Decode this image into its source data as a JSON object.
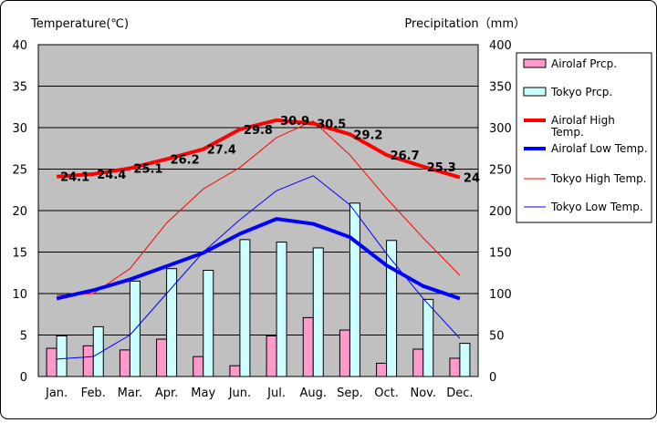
{
  "chart_data": {
    "type": "bar+line",
    "y_left_label": "Temperature(℃)",
    "y_right_label": "Precipitation（mm）",
    "y_left_ticks": [
      "0",
      "5",
      "10",
      "15",
      "20",
      "25",
      "30",
      "35",
      "40"
    ],
    "y_right_ticks": [
      "0",
      "50",
      "100",
      "150",
      "200",
      "250",
      "300",
      "350",
      "400"
    ],
    "ylim_left": [
      0,
      40
    ],
    "ylim_right": [
      0,
      400
    ],
    "categories": [
      "Jan.",
      "Feb.",
      "Mar.",
      "Apr.",
      "May",
      "Jun.",
      "Jul.",
      "Aug.",
      "Sep.",
      "Oct.",
      "Nov.",
      "Dec."
    ],
    "bar_series": [
      {
        "name": "Airolaf Prcp.",
        "color": "#ff99cc",
        "values": [
          34,
          37,
          32,
          45,
          24,
          13,
          49,
          71,
          56,
          16,
          33,
          22
        ]
      },
      {
        "name": "Tokyo Prcp.",
        "color": "#ccffff",
        "values": [
          49,
          60,
          115,
          130,
          128,
          165,
          162,
          155,
          209,
          164,
          93,
          40
        ]
      }
    ],
    "line_series": [
      {
        "name": "Airolaf High Temp.",
        "color": "#ff0000",
        "width": 4,
        "values": [
          24.1,
          24.4,
          25.1,
          26.2,
          27.4,
          29.8,
          30.9,
          30.5,
          29.2,
          26.7,
          25.3,
          24
        ],
        "labels": [
          "24.1",
          "24.4",
          "25.1",
          "26.2",
          "27.4",
          "29.8",
          "30.9",
          "30.5",
          "29.2",
          "26.7",
          "25.3",
          "24"
        ]
      },
      {
        "name": "Airolaf Low Temp.",
        "color": "#0000ff",
        "width": 4,
        "values": [
          9.4,
          10.4,
          11.7,
          13.3,
          14.9,
          17.2,
          19.0,
          18.4,
          16.8,
          13.4,
          10.9,
          9.4
        ]
      },
      {
        "name": "Tokyo High Temp.",
        "color": "#ff0000",
        "width": 1,
        "values": [
          9.8,
          10.0,
          13.0,
          18.5,
          22.6,
          25.2,
          28.8,
          30.8,
          26.7,
          21.5,
          16.7,
          12.2
        ]
      },
      {
        "name": "Tokyo Low Temp.",
        "color": "#0000ff",
        "width": 1,
        "values": [
          2.1,
          2.4,
          5.0,
          10.0,
          15.0,
          18.9,
          22.4,
          24.2,
          20.7,
          14.8,
          9.4,
          4.6
        ]
      }
    ],
    "legend": {
      "position": "right",
      "items": [
        {
          "key": "airolaf_prcp",
          "label": "Airolaf Prcp."
        },
        {
          "key": "tokyo_prcp",
          "label": "Tokyo Prcp."
        },
        {
          "key": "airolaf_high",
          "label": "Airolaf High",
          "label2": "Temp."
        },
        {
          "key": "airolaf_low",
          "label": "Airolaf Low Temp."
        },
        {
          "key": "tokyo_high",
          "label": "Tokyo High Temp."
        },
        {
          "key": "tokyo_low",
          "label": "Tokyo Low Temp."
        }
      ]
    },
    "plot_background": "#c0c0c0",
    "grid": "horizontal"
  }
}
